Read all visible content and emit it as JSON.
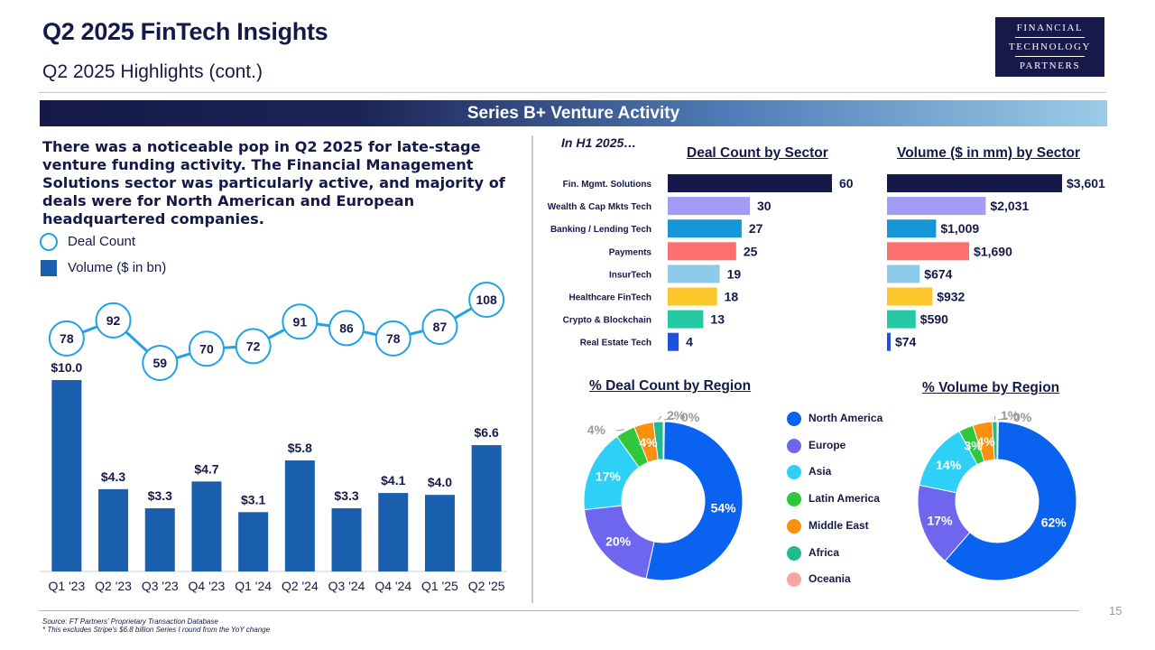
{
  "header": {
    "title": "Q2 2025 FinTech Insights",
    "subtitle": "Q2 2025 Highlights (cont.)",
    "logo": [
      "FINANCIAL",
      "TECHNOLOGY",
      "PARTNERS"
    ]
  },
  "banner": "Series B+ Venture Activity",
  "intro": "There was a noticeable pop in Q2 2025 for late-stage venture funding activity. The Financial Management Solutions sector was particularly active, and majority of deals were for North American and European headquartered companies.",
  "legend": {
    "deal_count": "Deal Count",
    "volume": "Volume ($ in bn)"
  },
  "period_label": "In H1 2025…",
  "titles": {
    "deal_by_sector": "Deal Count by Sector",
    "volume_by_sector": "Volume ($ in mm) by Sector",
    "deal_by_region": "% Deal Count by Region",
    "volume_by_region": "% Volume by Region"
  },
  "colors": {
    "navy": "#15194a",
    "volume_bar": "#1a5fae",
    "deal_circle": "#1fa2e8"
  },
  "chart_data": [
    {
      "type": "bar",
      "categories": [
        "Q1 '23",
        "Q2 '23",
        "Q3 '23",
        "Q4 '23",
        "Q1 '24",
        "Q2 '24",
        "Q3 '24",
        "Q4 '24",
        "Q1 '25",
        "Q2 '25"
      ],
      "series": [
        {
          "name": "Volume ($ in bn)",
          "values": [
            10.0,
            4.3,
            3.3,
            4.7,
            3.1,
            5.8,
            3.3,
            4.1,
            4.0,
            6.6
          ],
          "labels": [
            "$10.0",
            "$4.3",
            "$3.3",
            "$4.7",
            "$3.1",
            "$5.8",
            "$3.3",
            "$4.1",
            "$4.0",
            "$6.6"
          ]
        },
        {
          "name": "Deal Count",
          "type": "line",
          "values": [
            78,
            92,
            59,
            70,
            72,
            91,
            86,
            78,
            87,
            108
          ]
        }
      ]
    },
    {
      "type": "bar",
      "orientation": "horizontal",
      "title": "Deal Count by Sector",
      "categories": [
        "Fin. Mgmt. Solutions",
        "Wealth & Cap Mkts Tech",
        "Banking / Lending Tech",
        "Payments",
        "InsurTech",
        "Healthcare FinTech",
        "Crypto & Blockchain",
        "Real Estate Tech"
      ],
      "values": [
        60,
        30,
        27,
        25,
        19,
        18,
        13,
        4
      ],
      "labels": [
        "60",
        "30",
        "27",
        "25",
        "19",
        "18",
        "13",
        "4"
      ],
      "colors": [
        "#15194a",
        "#a39cf6",
        "#1496d8",
        "#fb6f70",
        "#8ecbea",
        "#fdc72c",
        "#26c9a6",
        "#1f4fe0"
      ]
    },
    {
      "type": "bar",
      "orientation": "horizontal",
      "title": "Volume ($ in mm) by Sector",
      "categories": [
        "Fin. Mgmt. Solutions",
        "Wealth & Cap Mkts Tech",
        "Banking / Lending Tech",
        "Payments",
        "InsurTech",
        "Healthcare FinTech",
        "Crypto & Blockchain",
        "Real Estate Tech"
      ],
      "values": [
        3601,
        2031,
        1009,
        1690,
        674,
        932,
        590,
        74
      ],
      "labels": [
        "$3,601",
        "$2,031",
        "$1,009",
        "$1,690",
        "$674",
        "$932",
        "$590",
        "$74"
      ],
      "colors": [
        "#15194a",
        "#a39cf6",
        "#1496d8",
        "#fb6f70",
        "#8ecbea",
        "#fdc72c",
        "#26c9a6",
        "#1f4fe0"
      ]
    },
    {
      "type": "pie",
      "title": "% Deal Count by Region",
      "categories": [
        "North America",
        "Europe",
        "Asia",
        "Latin America",
        "Middle East",
        "Africa",
        "Oceania"
      ],
      "values": [
        54,
        20,
        17,
        4,
        4,
        2,
        0
      ],
      "labels": [
        "54%",
        "20%",
        "17%",
        "4%",
        "4%",
        "2%",
        "0%"
      ]
    },
    {
      "type": "pie",
      "title": "% Volume by Region",
      "categories": [
        "North America",
        "Europe",
        "Asia",
        "Latin America",
        "Middle East",
        "Africa",
        "Oceania"
      ],
      "values": [
        62,
        17,
        14,
        3,
        4,
        1,
        0
      ],
      "labels": [
        "62%",
        "17%",
        "14%",
        "3%",
        "4%",
        "1%",
        "0%"
      ]
    }
  ],
  "region_legend": {
    "items": [
      "North America",
      "Europe",
      "Asia",
      "Latin America",
      "Middle East",
      "Africa",
      "Oceania"
    ],
    "colors": [
      "#0a63f0",
      "#6f66f0",
      "#2ed0f7",
      "#2fc83c",
      "#fb8f0e",
      "#23b98a",
      "#f7a5a1"
    ]
  },
  "footer": {
    "source": "Source: FT Partners' Proprietary Transaction Database",
    "note": "* This excludes Stripe's $6.8 billion Series I round from the YoY change",
    "page": "15"
  }
}
